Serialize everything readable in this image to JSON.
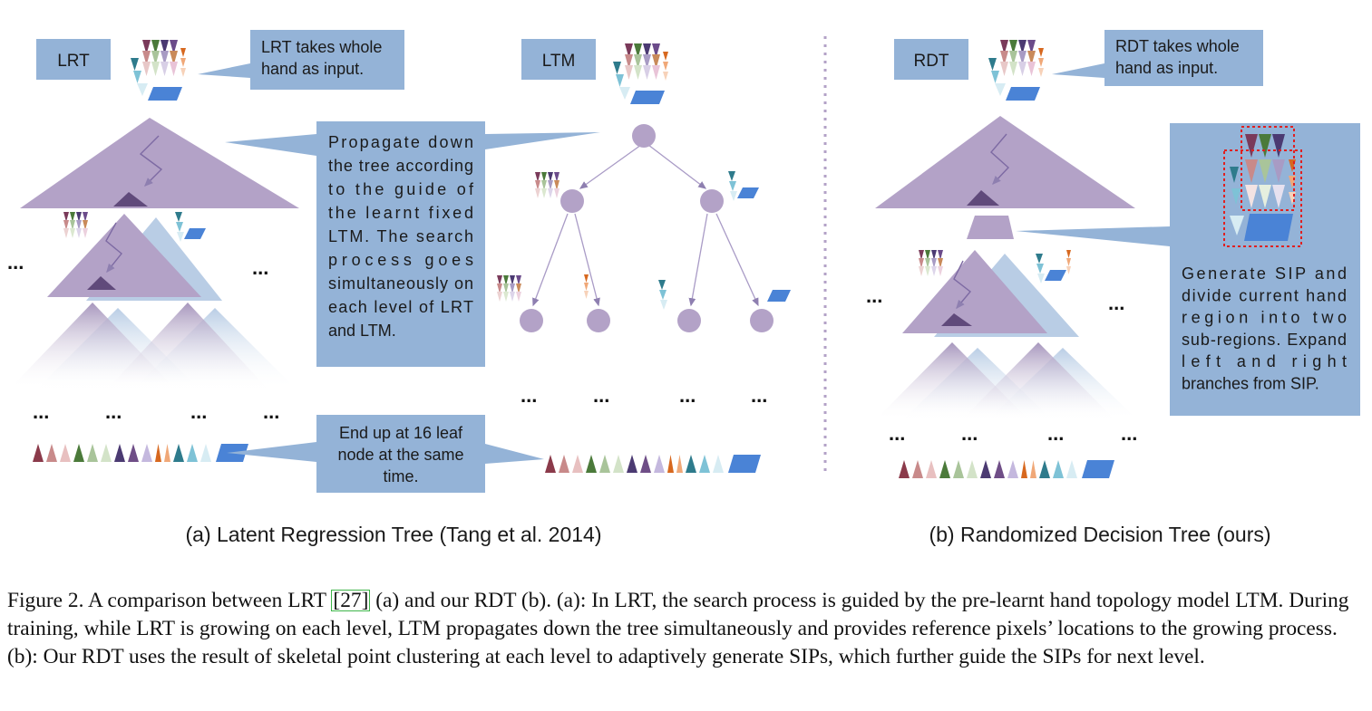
{
  "panel_a": {
    "box_lrt": "LRT",
    "box_ltm": "LTM",
    "callout_input": [
      "LRT takes whole",
      "hand as input."
    ],
    "callout_propagate": [
      "Propagate down",
      "the tree according",
      "to the guide of",
      "the learnt fixed",
      "LTM. The search",
      "process goes",
      "simultaneously on",
      "each level of LRT",
      "and LTM."
    ],
    "callout_leaf": [
      "End up at 16 leaf",
      "node at the same",
      "time."
    ],
    "subcaption": "(a) Latent Regression Tree (Tang et al. 2014)"
  },
  "panel_b": {
    "box_rdt": "RDT",
    "callout_input": [
      "RDT takes whole",
      "hand as input."
    ],
    "callout_sip": [
      "Generate SIP and",
      "divide current hand",
      "region into two",
      "sub-regions. Expand",
      "left and right",
      "branches from SIP."
    ],
    "subcaption": "(b) Randomized Decision Tree (ours)"
  },
  "ellipsis": "...",
  "caption": {
    "prefix": "Figure 2. A comparison between LRT ",
    "ref": "[27]",
    "rest": " (a) and our RDT (b). (a): In LRT, the search process is guided by the pre-learnt hand topology model LTM. During training, while LRT is growing on each level, LTM propagates down the tree simultaneously and provides reference pixels’ locations to the growing process. (b): Our RDT uses the result of skeletal point clustering at each level to adaptively generate SIPs, which further guide the SIPs for next level."
  },
  "colors": {
    "box": "#94b3d7",
    "tree": "#b3a2c7",
    "tree_back": "#b9cde5",
    "node": "#b3a2c7",
    "dark": "#604a7b",
    "part": "#4a83d6",
    "sip_border": "#e02020",
    "separator": "#b3a2c7"
  }
}
